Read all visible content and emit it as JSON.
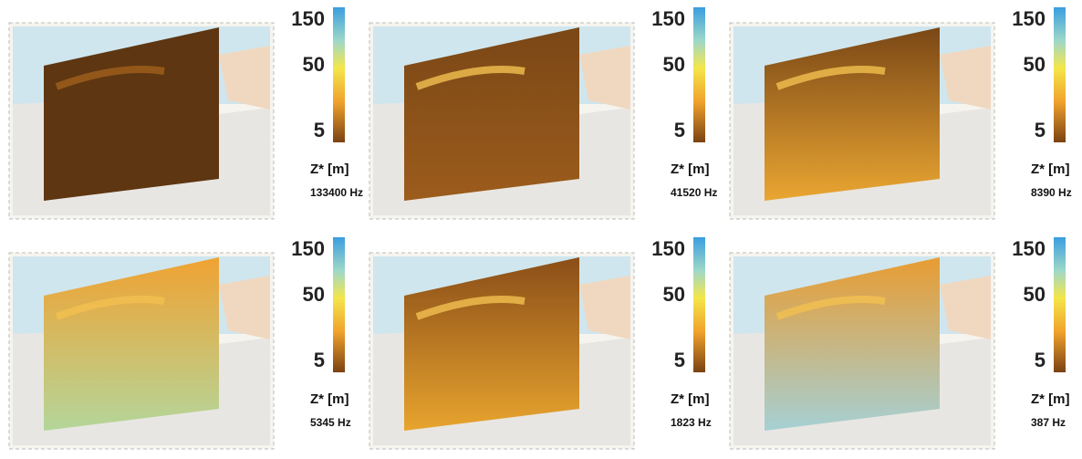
{
  "colorbar_ticks": [
    "150",
    "50",
    "5"
  ],
  "z_label": "Z* [m]",
  "panels": [
    {
      "frequency": "133400 Hz"
    },
    {
      "frequency": "41520 Hz"
    },
    {
      "frequency": "8390 Hz"
    },
    {
      "frequency": "5345 Hz"
    },
    {
      "frequency": "1823 Hz"
    },
    {
      "frequency": "387 Hz"
    }
  ]
}
